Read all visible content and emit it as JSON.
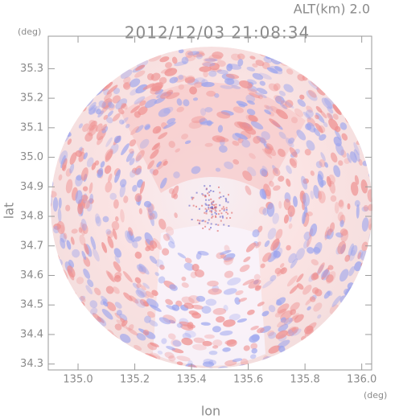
{
  "chart_data": {
    "type": "radar",
    "title": "2012/12/03 21:08:34",
    "subtitle": "ALT(km) 2.0",
    "x_label": "lon",
    "y_label": "lat",
    "x_unit": "(deg)",
    "y_unit": "(deg)",
    "xlim": [
      134.895,
      136.035
    ],
    "ylim": [
      34.28,
      35.41
    ],
    "xticks": [
      {
        "value": 135,
        "label": "135.0"
      },
      135.2,
      135.4,
      135.6,
      135.8,
      {
        "value": 136,
        "label": "136.0"
      }
    ],
    "yticks": [
      34.3,
      34.4,
      34.5,
      34.6,
      34.7,
      34.8,
      34.9,
      {
        "value": 35,
        "label": "35.0"
      },
      35.1,
      35.2,
      35.3
    ]
  }
}
